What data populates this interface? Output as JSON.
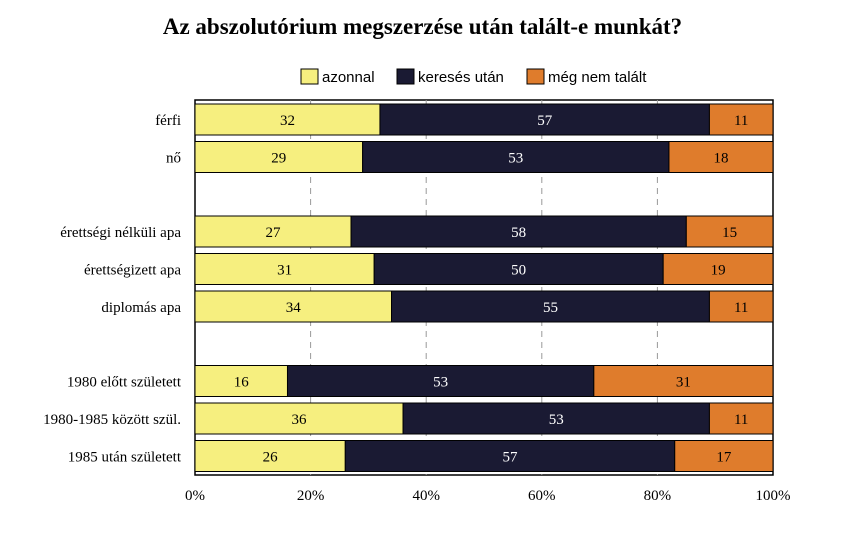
{
  "chart_data": {
    "type": "bar",
    "orientation": "horizontal",
    "stacked": true,
    "title": "Az abszolutórium megszerzése után talált-e munkát?",
    "categories": [
      "férfi",
      "nő",
      "érettségi nélküli apa",
      "érettségizett apa",
      "diplomás apa",
      "1980 előtt született",
      "1980-1985 között szül.",
      "1985 után született"
    ],
    "groups": [
      [
        0,
        1
      ],
      [
        2,
        3,
        4
      ],
      [
        5,
        6,
        7
      ]
    ],
    "series": [
      {
        "name": "azonnal",
        "color": "#f6ef7f",
        "text_color": "#000000",
        "values": [
          32,
          29,
          27,
          31,
          34,
          16,
          36,
          26
        ]
      },
      {
        "name": "keresés után",
        "color": "#1a1a33",
        "text_color": "#ffffff",
        "values": [
          57,
          53,
          58,
          50,
          55,
          53,
          53,
          57
        ]
      },
      {
        "name": "még nem talált",
        "color": "#df7c2c",
        "text_color": "#000000",
        "values": [
          11,
          18,
          15,
          19,
          11,
          31,
          11,
          17
        ]
      }
    ],
    "x_ticks": [
      "0%",
      "20%",
      "40%",
      "60%",
      "80%",
      "100%"
    ],
    "xlim": [
      0,
      100
    ],
    "grid": "dashed-vertical",
    "legend_position": "top"
  }
}
